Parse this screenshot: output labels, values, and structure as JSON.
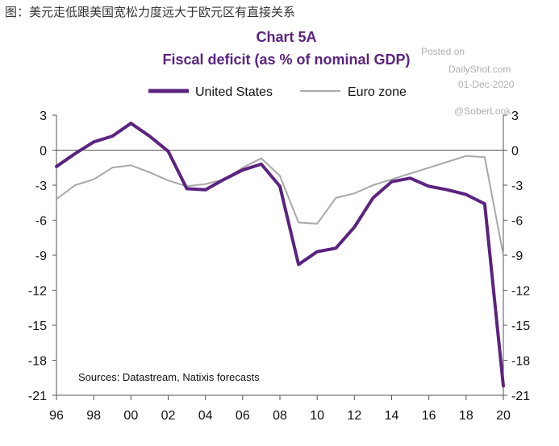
{
  "caption": "图：美元走低跟美国宽松力度远大于欧元区有直接关系",
  "watermark": {
    "posted_on": "Posted on",
    "site": "DailyShot.com",
    "date": "01-Dec-2020",
    "handle": "@SoberLook"
  },
  "chart_data": {
    "type": "line",
    "title": "Chart 5A",
    "subtitle": "Fiscal deficit (as % of nominal GDP)",
    "xlabel": "",
    "ylabel": "",
    "source_note": "Sources: Datastream, Natixis forecasts",
    "x": [
      1996,
      1997,
      1998,
      1999,
      2000,
      2001,
      2002,
      2003,
      2004,
      2005,
      2006,
      2007,
      2008,
      2009,
      2010,
      2011,
      2012,
      2013,
      2014,
      2015,
      2016,
      2017,
      2018,
      2019,
      2020
    ],
    "x_tick_values": [
      1996,
      1998,
      2000,
      2002,
      2004,
      2006,
      2008,
      2010,
      2012,
      2014,
      2016,
      2018,
      2020
    ],
    "x_tick_labels": [
      "96",
      "98",
      "00",
      "02",
      "04",
      "06",
      "08",
      "10",
      "12",
      "14",
      "16",
      "18",
      "20"
    ],
    "ylim": [
      -21,
      3
    ],
    "y_ticks": [
      3,
      0,
      -3,
      -6,
      -9,
      -12,
      -15,
      -18,
      -21
    ],
    "y_tick_labels": [
      "3",
      "0",
      "-3",
      "-6",
      "-9",
      "-12",
      "-15",
      "-18",
      "-21"
    ],
    "reference_line": 0,
    "legend_position": "top",
    "series": [
      {
        "name": "United States",
        "color": "#5b2380",
        "values": [
          -1.4,
          -0.3,
          0.7,
          1.2,
          2.3,
          1.2,
          -0.1,
          -3.3,
          -3.4,
          -2.5,
          -1.7,
          -1.2,
          -3.1,
          -9.8,
          -8.7,
          -8.4,
          -6.6,
          -4.1,
          -2.7,
          -2.4,
          -3.1,
          -3.4,
          -3.8,
          -4.6,
          -20.2
        ]
      },
      {
        "name": "Euro zone",
        "color": "#a8a8a8",
        "values": [
          -4.2,
          -3.0,
          -2.5,
          -1.5,
          -1.3,
          -1.9,
          -2.6,
          -3.1,
          -2.9,
          -2.5,
          -1.5,
          -0.7,
          -2.2,
          -6.2,
          -6.3,
          -4.1,
          -3.7,
          -3.0,
          -2.5,
          -2.0,
          -1.5,
          -1.0,
          -0.5,
          -0.6,
          -9.0
        ]
      }
    ]
  }
}
